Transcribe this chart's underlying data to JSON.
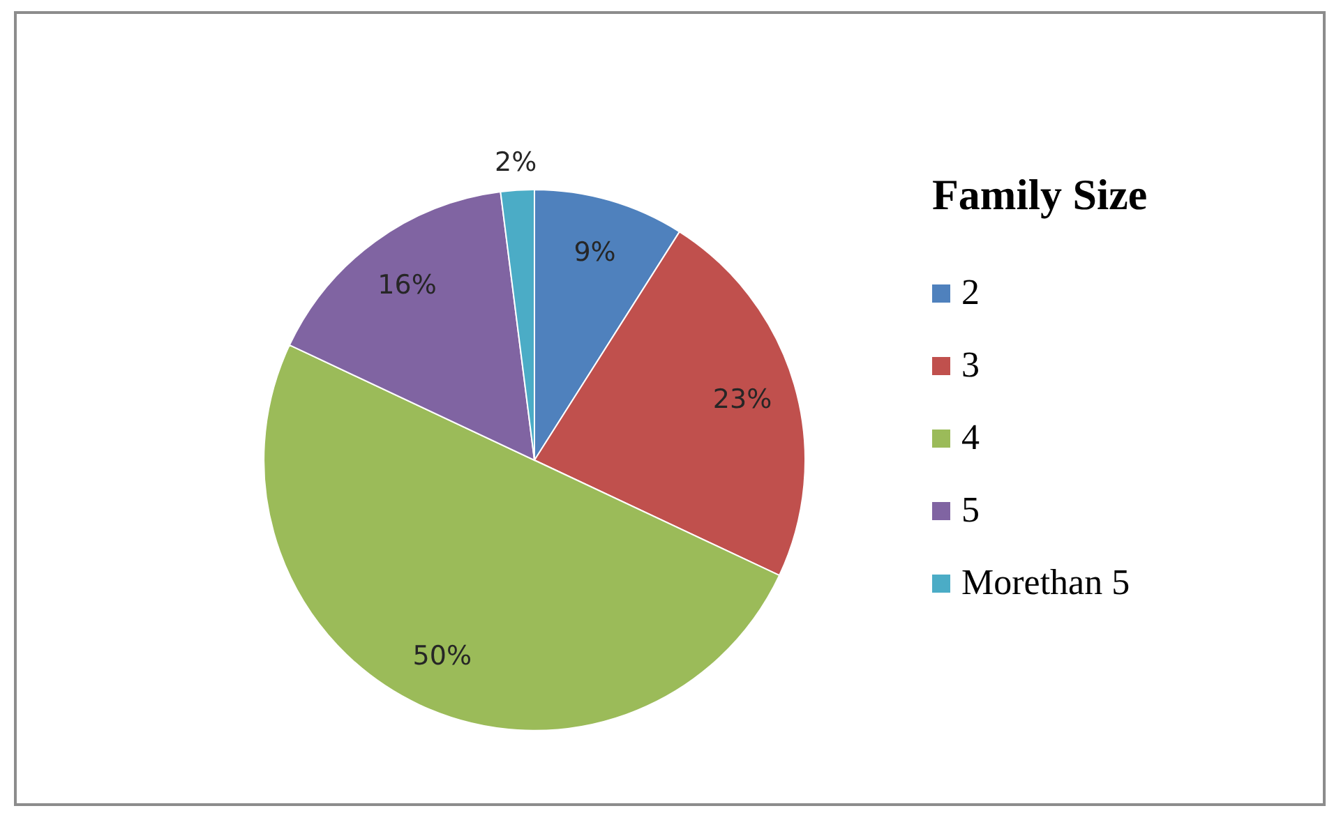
{
  "chart_data": {
    "type": "pie",
    "legend_title": "Family Size",
    "legend": "right",
    "value_labels": [
      "9%",
      "23%",
      "50%",
      "16%",
      "2%"
    ],
    "categories": [
      "2",
      "3",
      "4",
      "5",
      "Morethan 5"
    ],
    "values": [
      9,
      23,
      50,
      16,
      2
    ],
    "colors": [
      "#4f81bd",
      "#c0504d",
      "#9bbb59",
      "#8064a2",
      "#4bacc6"
    ]
  }
}
